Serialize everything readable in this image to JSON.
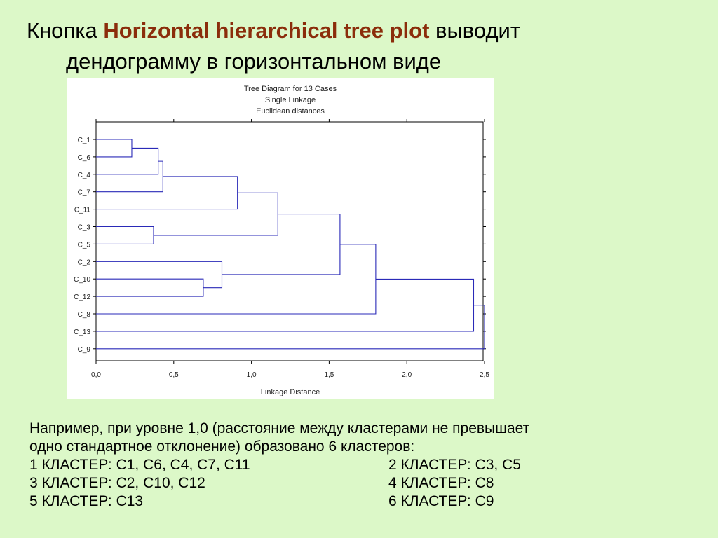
{
  "title": {
    "prefix": "Кнопка ",
    "highlight": "Horizontal hierarchical tree plot",
    "suffix": " выводит",
    "line2": "дендограмму в горизонтальном виде"
  },
  "chart_data": {
    "type": "dendrogram",
    "orientation": "horizontal",
    "title": [
      "Tree Diagram for 13 Cases",
      "Single Linkage",
      "Euclidean distances"
    ],
    "xlabel": "Linkage Distance",
    "xlim": [
      0,
      2.5
    ],
    "xticks": [
      "0,0",
      "0,5",
      "1,0",
      "1,5",
      "2,0",
      "2,5"
    ],
    "leaves": [
      "C_1",
      "C_6",
      "C_4",
      "C_7",
      "C_11",
      "C_3",
      "C_5",
      "C_2",
      "C_10",
      "C_12",
      "C_8",
      "C_13",
      "C_9"
    ],
    "merges": [
      {
        "left": "C_1",
        "right": "C_6",
        "distance": 0.23
      },
      {
        "left": "C_1+C_6",
        "right": "C_4",
        "distance": 0.4
      },
      {
        "left": "C_1+C_6+C_4",
        "right": "C_7",
        "distance": 0.43
      },
      {
        "left": "C_3",
        "right": "C_5",
        "distance": 0.37
      },
      {
        "left": "C_10",
        "right": "C_12",
        "distance": 0.69
      },
      {
        "left": "C_2",
        "right": "C_10+C_12",
        "distance": 0.81
      },
      {
        "left": "C_1+C_6+C_4+C_7",
        "right": "C_11",
        "distance": 0.91
      },
      {
        "left": "C_1+C_6+C_4+C_7+C_11",
        "right": "C_3+C_5",
        "distance": 1.17
      },
      {
        "left": "C_1+C_6+C_4+C_7+C_11+C_3+C_5",
        "right": "C_2+C_10+C_12",
        "distance": 1.57
      },
      {
        "left": "C_1+C_6+C_4+C_7+C_11+C_3+C_5+C_2+C_10+C_12",
        "right": "C_8",
        "distance": 1.8
      },
      {
        "left": "C_1+C_6+C_4+C_7+C_11+C_3+C_5+C_2+C_10+C_12+C_8",
        "right": "C_13",
        "distance": 2.43
      },
      {
        "left": "C_1+C_6+C_4+C_7+C_11+C_3+C_5+C_2+C_10+C_12+C_8+C_13",
        "right": "C_9",
        "distance": 2.5
      }
    ],
    "grid": false,
    "line_color": "#2a2ab8"
  },
  "explanation": {
    "line1": "Например, при уровне 1,0 (расстояние между кластерами не превышает",
    "line2": "одно стандартное отклонение) образовано 6 кластеров:",
    "clusters": [
      [
        "1 КЛАСТЕР: С1, С6, С4, С7, С11",
        "2 КЛАСТЕР: С3, С5"
      ],
      [
        "3 КЛАСТЕР: С2, С10, С12",
        "4 КЛАСТЕР: С8"
      ],
      [
        "5 КЛАСТЕР: С13",
        "6 КЛАСТЕР: С9"
      ]
    ]
  }
}
